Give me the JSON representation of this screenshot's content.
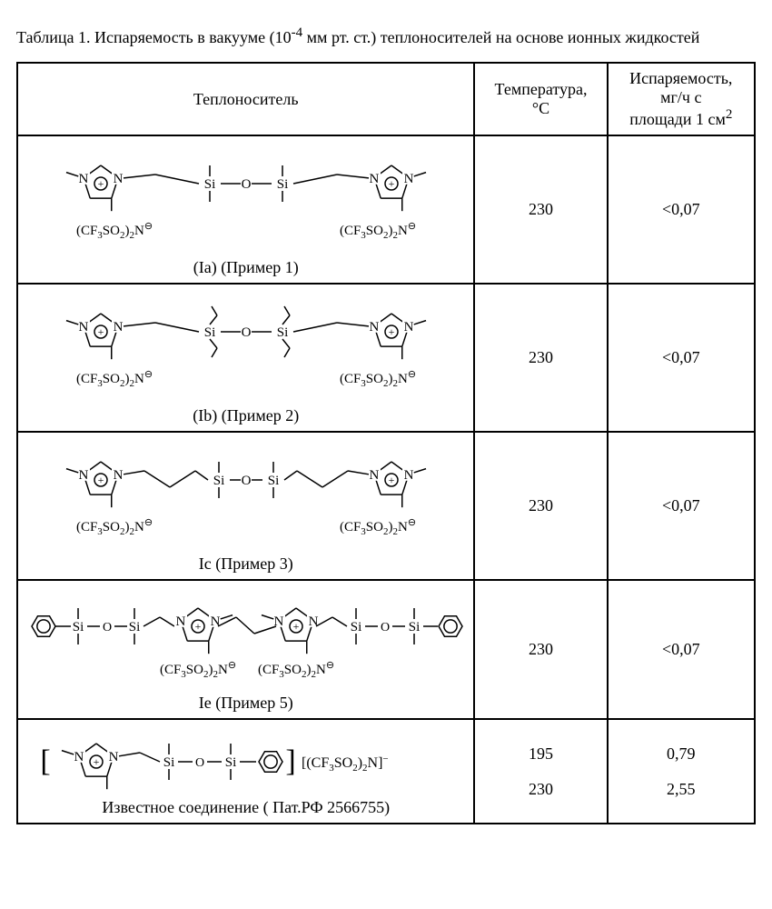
{
  "caption_parts": {
    "lead": "Таблица 1. Испаряемость в вакууме (10",
    "sup": "-4",
    "mid": " мм рт. ст.) теплоносителей на основе ионных жидкостей"
  },
  "columns": {
    "c1": "Теплоноситель",
    "c2_line1": "Температура,",
    "c2_line2": "°C",
    "c3_line1": "Испаряемость,",
    "c3_line2": "мг/ч с",
    "c3_line3_pre": "площади 1 см",
    "c3_line3_sup": "2"
  },
  "anion_parts": {
    "pre": "(CF",
    "s3": "3",
    "mid": "SO",
    "s2": "2",
    "post": ")",
    "n2": "2",
    "n": "N",
    "minus": "⊖"
  },
  "anion_bracket": {
    "open": "[(CF",
    "s3": "3",
    "mid": "SO",
    "s2": "2",
    "close1": ")",
    "n2": "2",
    "close2": "N]",
    "minus": "−"
  },
  "rows": [
    {
      "label": "(Ia) (Пример 1)",
      "temp": "230",
      "evap": "<0,07",
      "variant": "methyl"
    },
    {
      "label": "(Ib) (Пример 2)",
      "temp": "230",
      "evap": "<0,07",
      "variant": "ethyl"
    },
    {
      "label": "Ic (Пример 3)",
      "temp": "230",
      "evap": "<0,07",
      "variant": "propyl"
    },
    {
      "label": "Ie (Пример 5)",
      "temp": "230",
      "evap": "<0,07",
      "variant": "phenyl"
    }
  ],
  "row5": {
    "label": "Известное соединение ( Пат.РФ 2566755)",
    "temps": [
      "195",
      "230"
    ],
    "evaps": [
      "0,79",
      "2,55"
    ]
  },
  "style": {
    "stroke": "#000000",
    "stroke_width": 1.5,
    "font_family": "Times New Roman"
  }
}
